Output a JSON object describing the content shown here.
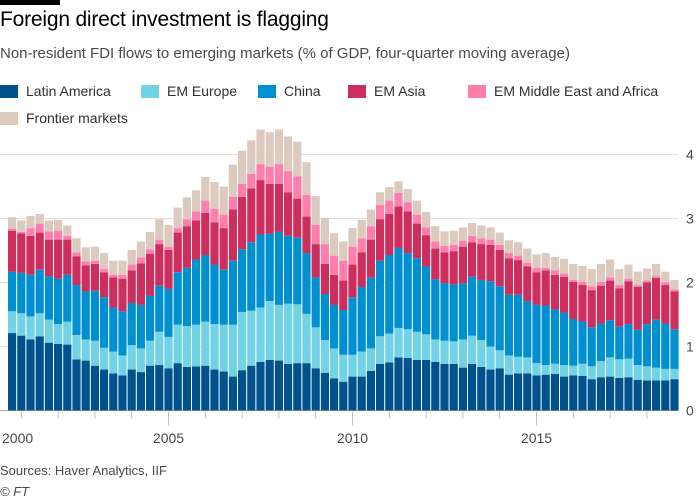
{
  "header": {
    "title": "Foreign direct investment is flagging",
    "subtitle": "Non-resident FDI flows to emerging markets (% of GDP, four-quarter moving average)"
  },
  "footer": {
    "sources": "Sources: Haver Analytics, IIF",
    "copyright": "© FT"
  },
  "chart_data": {
    "type": "bar",
    "stacked": true,
    "title": "Foreign direct investment is flagging",
    "subtitle": "Non-resident FDI flows to emerging markets (% of GDP, four-quarter moving average)",
    "xlabel": "",
    "ylabel": "",
    "ylim": [
      0,
      4.4
    ],
    "yticks": [
      "0",
      "1",
      "2",
      "3",
      "4"
    ],
    "ytick_values": [
      0,
      1,
      2,
      3,
      4
    ],
    "xticks": [
      {
        "label": "2000",
        "category": "2000Q4"
      },
      {
        "label": "2005",
        "category": "2005Q1"
      },
      {
        "label": "2010",
        "category": "2010Q1"
      },
      {
        "label": "2015",
        "category": "2015Q1"
      }
    ],
    "grid": true,
    "legend_placement": "top-left",
    "categories": [
      "2000Q4",
      "2001Q1",
      "2001Q2",
      "2001Q3",
      "2001Q4",
      "2002Q1",
      "2002Q2",
      "2002Q3",
      "2002Q4",
      "2003Q1",
      "2003Q2",
      "2003Q3",
      "2003Q4",
      "2004Q1",
      "2004Q2",
      "2004Q3",
      "2004Q4",
      "2005Q1",
      "2005Q2",
      "2005Q3",
      "2005Q4",
      "2006Q1",
      "2006Q2",
      "2006Q3",
      "2006Q4",
      "2007Q1",
      "2007Q2",
      "2007Q3",
      "2007Q4",
      "2008Q1",
      "2008Q2",
      "2008Q3",
      "2008Q4",
      "2009Q1",
      "2009Q2",
      "2009Q3",
      "2009Q4",
      "2010Q1",
      "2010Q2",
      "2010Q3",
      "2010Q4",
      "2011Q1",
      "2011Q2",
      "2011Q3",
      "2011Q4",
      "2012Q1",
      "2012Q2",
      "2012Q3",
      "2012Q4",
      "2013Q1",
      "2013Q2",
      "2013Q3",
      "2013Q4",
      "2014Q1",
      "2014Q2",
      "2014Q3",
      "2014Q4",
      "2015Q1",
      "2015Q2",
      "2015Q3",
      "2015Q4",
      "2016Q1",
      "2016Q2",
      "2016Q3",
      "2016Q4",
      "2017Q1",
      "2017Q2",
      "2017Q3",
      "2017Q4",
      "2018Q1",
      "2018Q2",
      "2018Q3",
      "2018Q4"
    ],
    "series": [
      {
        "name": "Latin America",
        "color": "#00528d",
        "values": [
          1.21,
          1.17,
          1.11,
          1.16,
          1.06,
          1.04,
          1.03,
          0.8,
          0.78,
          0.7,
          0.64,
          0.58,
          0.55,
          0.64,
          0.6,
          0.7,
          0.71,
          0.66,
          0.74,
          0.68,
          0.69,
          0.7,
          0.64,
          0.61,
          0.53,
          0.63,
          0.7,
          0.76,
          0.79,
          0.78,
          0.73,
          0.74,
          0.74,
          0.66,
          0.59,
          0.5,
          0.45,
          0.53,
          0.53,
          0.62,
          0.73,
          0.75,
          0.83,
          0.82,
          0.79,
          0.79,
          0.76,
          0.73,
          0.73,
          0.67,
          0.73,
          0.68,
          0.64,
          0.66,
          0.56,
          0.58,
          0.58,
          0.55,
          0.56,
          0.57,
          0.53,
          0.55,
          0.54,
          0.49,
          0.52,
          0.53,
          0.51,
          0.52,
          0.48,
          0.47,
          0.47,
          0.47,
          0.49
        ]
      },
      {
        "name": "EM Europe",
        "color": "#72d3e6",
        "values": [
          0.34,
          0.35,
          0.36,
          0.36,
          0.36,
          0.31,
          0.36,
          0.38,
          0.33,
          0.39,
          0.34,
          0.34,
          0.31,
          0.38,
          0.37,
          0.39,
          0.52,
          0.49,
          0.6,
          0.64,
          0.65,
          0.69,
          0.71,
          0.73,
          0.81,
          0.91,
          0.86,
          0.85,
          0.92,
          0.87,
          0.94,
          0.92,
          0.77,
          0.64,
          0.51,
          0.47,
          0.42,
          0.34,
          0.39,
          0.35,
          0.43,
          0.45,
          0.46,
          0.45,
          0.44,
          0.4,
          0.35,
          0.36,
          0.35,
          0.44,
          0.44,
          0.42,
          0.36,
          0.28,
          0.3,
          0.26,
          0.25,
          0.19,
          0.15,
          0.16,
          0.18,
          0.15,
          0.19,
          0.2,
          0.25,
          0.3,
          0.29,
          0.29,
          0.23,
          0.22,
          0.2,
          0.18,
          0.16
        ]
      },
      {
        "name": "China",
        "color": "#0090d0",
        "values": [
          0.62,
          0.63,
          0.65,
          0.68,
          0.68,
          0.71,
          0.73,
          0.78,
          0.75,
          0.78,
          0.79,
          0.69,
          0.69,
          0.66,
          0.68,
          0.7,
          0.72,
          0.75,
          0.82,
          0.91,
          1.02,
          1.04,
          0.93,
          0.86,
          1.0,
          0.98,
          1.07,
          1.14,
          1.05,
          1.14,
          1.06,
          1.04,
          0.95,
          0.78,
          0.72,
          0.68,
          0.7,
          0.9,
          1.01,
          1.11,
          1.18,
          1.23,
          1.25,
          1.19,
          1.15,
          1.06,
          0.94,
          0.9,
          0.89,
          0.88,
          0.92,
          0.94,
          1.02,
          1.0,
          0.95,
          0.97,
          0.88,
          0.91,
          0.93,
          0.85,
          0.82,
          0.73,
          0.66,
          0.61,
          0.59,
          0.58,
          0.51,
          0.54,
          0.55,
          0.66,
          0.75,
          0.71,
          0.62
        ]
      },
      {
        "name": "EM Asia",
        "color": "#cc2f5e",
        "values": [
          0.64,
          0.62,
          0.61,
          0.58,
          0.57,
          0.61,
          0.55,
          0.45,
          0.41,
          0.42,
          0.39,
          0.47,
          0.51,
          0.51,
          0.65,
          0.66,
          0.65,
          0.61,
          0.62,
          0.65,
          0.61,
          0.66,
          0.66,
          0.65,
          0.8,
          0.82,
          0.84,
          0.85,
          0.78,
          0.75,
          0.68,
          0.61,
          0.57,
          0.52,
          0.47,
          0.47,
          0.46,
          0.51,
          0.54,
          0.59,
          0.65,
          0.64,
          0.65,
          0.65,
          0.54,
          0.49,
          0.48,
          0.48,
          0.52,
          0.57,
          0.54,
          0.56,
          0.57,
          0.57,
          0.57,
          0.54,
          0.54,
          0.51,
          0.55,
          0.54,
          0.56,
          0.58,
          0.57,
          0.58,
          0.59,
          0.62,
          0.6,
          0.67,
          0.67,
          0.65,
          0.65,
          0.6,
          0.59
        ]
      },
      {
        "name": "EM Middle East and Africa",
        "color": "#ff7eab",
        "values": [
          0.03,
          0.02,
          0.12,
          0.14,
          0.13,
          0.14,
          0.06,
          0.06,
          0.06,
          0.05,
          0.05,
          0.04,
          0.06,
          0.09,
          0.09,
          0.07,
          0.07,
          0.05,
          0.07,
          0.11,
          0.14,
          0.19,
          0.21,
          0.21,
          0.2,
          0.2,
          0.23,
          0.25,
          0.27,
          0.31,
          0.33,
          0.35,
          0.34,
          0.3,
          0.31,
          0.3,
          0.31,
          0.28,
          0.22,
          0.21,
          0.22,
          0.21,
          0.21,
          0.14,
          0.14,
          0.12,
          0.11,
          0.1,
          0.1,
          0.09,
          0.1,
          0.09,
          0.08,
          0.08,
          0.08,
          0.07,
          0.06,
          0.07,
          0.04,
          0.07,
          0.05,
          0.03,
          0.05,
          0.06,
          0.06,
          0.05,
          0.05,
          0.04,
          0.03,
          0.03,
          0.03,
          0.04,
          0.03
        ]
      },
      {
        "name": "Frontier markets",
        "color": "#dccabe",
        "values": [
          0.18,
          0.18,
          0.19,
          0.15,
          0.17,
          0.17,
          0.16,
          0.22,
          0.22,
          0.22,
          0.25,
          0.22,
          0.22,
          0.23,
          0.25,
          0.27,
          0.32,
          0.34,
          0.32,
          0.34,
          0.33,
          0.37,
          0.42,
          0.44,
          0.5,
          0.52,
          0.52,
          0.54,
          0.54,
          0.54,
          0.54,
          0.54,
          0.51,
          0.45,
          0.41,
          0.35,
          0.3,
          0.29,
          0.29,
          0.26,
          0.2,
          0.21,
          0.18,
          0.21,
          0.22,
          0.24,
          0.24,
          0.23,
          0.22,
          0.21,
          0.2,
          0.2,
          0.19,
          0.19,
          0.2,
          0.21,
          0.22,
          0.21,
          0.23,
          0.21,
          0.23,
          0.25,
          0.25,
          0.27,
          0.28,
          0.28,
          0.25,
          0.22,
          0.21,
          0.19,
          0.19,
          0.17,
          0.15
        ]
      }
    ]
  }
}
